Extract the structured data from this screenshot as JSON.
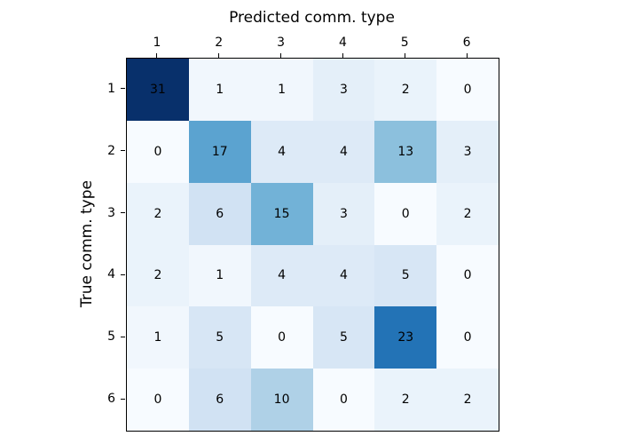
{
  "chart_data": {
    "type": "heatmap",
    "title": "Predicted comm. type",
    "xlabel": "",
    "ylabel": "True comm. type",
    "x_tick_labels": [
      "1",
      "2",
      "3",
      "4",
      "5",
      "6"
    ],
    "y_tick_labels": [
      "1",
      "2",
      "3",
      "4",
      "5",
      "6"
    ],
    "rows": [
      [
        31,
        1,
        1,
        3,
        2,
        0
      ],
      [
        0,
        17,
        4,
        4,
        13,
        3
      ],
      [
        2,
        6,
        15,
        3,
        0,
        2
      ],
      [
        2,
        1,
        4,
        4,
        5,
        0
      ],
      [
        1,
        5,
        0,
        5,
        23,
        0
      ],
      [
        0,
        6,
        10,
        0,
        2,
        2
      ]
    ],
    "vmin": 0,
    "vmax": 31,
    "colormap": "Blues",
    "tick_position": "top-left",
    "legend": "none",
    "colors": {
      "figure_background": "#ffffff",
      "cell_min": "#f7fbff",
      "cell_max": "#08306b",
      "annotation_text": "#000000",
      "axes_border": "#000000"
    }
  }
}
